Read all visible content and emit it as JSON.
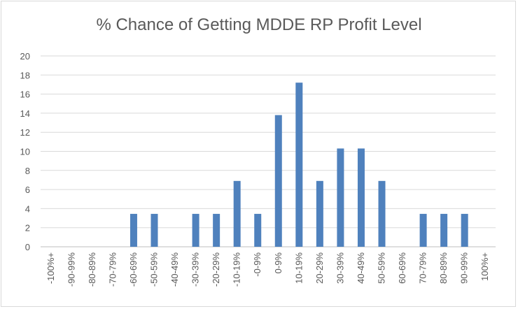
{
  "chart_data": {
    "type": "bar",
    "title": "% Chance of Getting MDDE RP Profit Level",
    "xlabel": "",
    "ylabel": "",
    "ylim": [
      0,
      20
    ],
    "yticks": [
      0,
      2,
      4,
      6,
      8,
      10,
      12,
      14,
      16,
      18,
      20
    ],
    "grid": true,
    "legend": "none",
    "bar_color": "#4f81bd",
    "categories": [
      "-100%+",
      "-90-99%",
      "-80-89%",
      "-70-79%",
      "-60-69%",
      "-50-59%",
      "-40-49%",
      "-30-39%",
      "-20-29%",
      "-10-19%",
      "-0-9%",
      "0-9%",
      "10-19%",
      "20-29%",
      "30-39%",
      "40-49%",
      "50-59%",
      "60-69%",
      "70-79%",
      "80-89%",
      "90-99%",
      "100%+"
    ],
    "values": [
      0,
      0,
      0,
      0,
      3.45,
      3.45,
      0,
      3.45,
      3.45,
      6.9,
      3.45,
      13.8,
      17.2,
      6.9,
      10.3,
      10.3,
      6.9,
      0,
      3.45,
      3.45,
      3.45,
      0
    ]
  }
}
